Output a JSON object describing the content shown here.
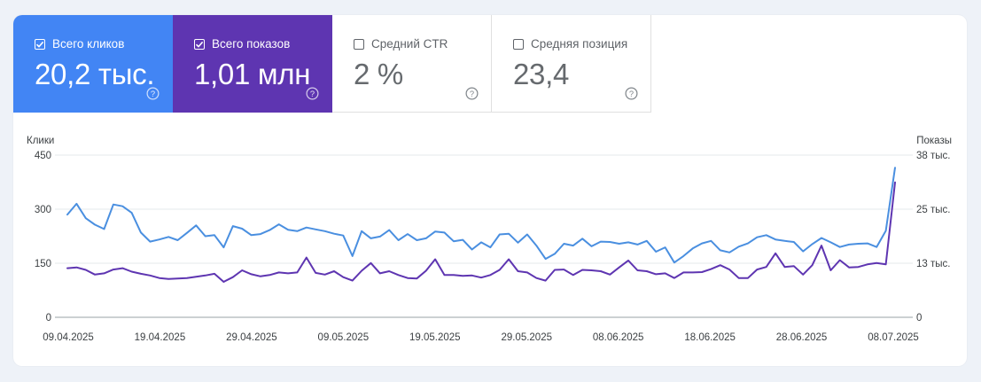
{
  "metrics": [
    {
      "label": "Всего кликов",
      "value": "20,2 тыс.",
      "checked": true,
      "color": "#4285f4"
    },
    {
      "label": "Всего показов",
      "value": "1,01 млн",
      "checked": true,
      "color": "#5e35b1"
    },
    {
      "label": "Средний CTR",
      "value": "2 %",
      "checked": false
    },
    {
      "label": "Средняя позиция",
      "value": "23,4",
      "checked": false
    }
  ],
  "chart_data": {
    "type": "line",
    "left_axis_title": "Клики",
    "right_axis_title": "Показы",
    "left_ticks": [
      "450",
      "300",
      "150",
      "0"
    ],
    "right_ticks": [
      "38 тыс.",
      "25 тыс.",
      "13 тыс.",
      "0"
    ],
    "left_ylim": [
      0,
      450
    ],
    "right_ylim": [
      0,
      38000
    ],
    "x_labels": [
      "09.04.2025",
      "19.04.2025",
      "29.04.2025",
      "09.05.2025",
      "19.05.2025",
      "29.05.2025",
      "08.06.2025",
      "18.06.2025",
      "28.06.2025",
      "08.07.2025"
    ],
    "grid": true,
    "series": [
      {
        "name": "Всего кликов",
        "axis": "left",
        "color": "#4a8fe0",
        "values": [
          285,
          315,
          275,
          257,
          245,
          313,
          308,
          290,
          235,
          210,
          216,
          223,
          214,
          234,
          255,
          225,
          228,
          194,
          253,
          246,
          228,
          231,
          242,
          258,
          243,
          239,
          249,
          244,
          239,
          232,
          227,
          170,
          239,
          219,
          224,
          242,
          214,
          231,
          214,
          219,
          238,
          235,
          211,
          215,
          188,
          208,
          194,
          230,
          232,
          207,
          230,
          199,
          162,
          176,
          204,
          199,
          218,
          197,
          210,
          209,
          204,
          208,
          202,
          212,
          182,
          194,
          152,
          170,
          191,
          205,
          212,
          186,
          180,
          196,
          205,
          222,
          228,
          216,
          212,
          209,
          183,
          203,
          220,
          208,
          195,
          202,
          204,
          205,
          195,
          240,
          415
        ]
      },
      {
        "name": "Всего показов",
        "axis": "right",
        "color": "#5e35b1",
        "values": [
          11500,
          11700,
          11100,
          10000,
          10300,
          11200,
          11500,
          10700,
          10200,
          9800,
          9200,
          9000,
          9100,
          9200,
          9500,
          9800,
          10200,
          8300,
          9400,
          11000,
          10100,
          9600,
          9900,
          10500,
          10300,
          10500,
          14000,
          10400,
          10000,
          10800,
          9400,
          8600,
          10900,
          12700,
          10300,
          10800,
          9900,
          9200,
          9100,
          10900,
          13600,
          9900,
          9900,
          9700,
          9800,
          9300,
          9900,
          11100,
          13600,
          10800,
          10500,
          9200,
          8600,
          11100,
          11200,
          9900,
          11100,
          11000,
          10800,
          10000,
          11700,
          13300,
          11000,
          10800,
          10100,
          10300,
          9200,
          10500,
          10500,
          10600,
          11300,
          12200,
          11200,
          9200,
          9200,
          11200,
          11800,
          15000,
          11800,
          12000,
          10000,
          12200,
          16800,
          11000,
          13400,
          11700,
          11800,
          12400,
          12700,
          12400,
          31600
        ]
      }
    ]
  }
}
